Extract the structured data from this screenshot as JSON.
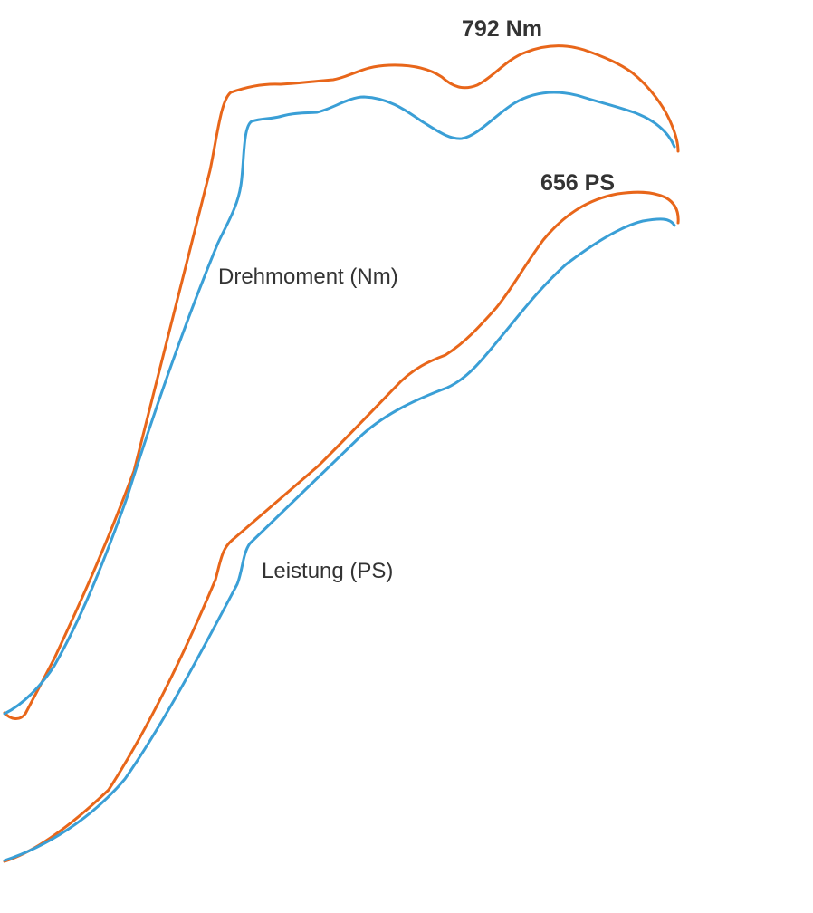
{
  "chart_data": {
    "type": "line",
    "title": "",
    "xlabel": "",
    "ylabel": "",
    "grid": false,
    "legend": "none",
    "colors": {
      "tuned": "#e8661a",
      "stock": "#3a9fd6",
      "text": "#333333"
    },
    "annotations": {
      "torque_peak": "792 Nm",
      "power_peak": "656 PS",
      "torque_label": "Drehmoment (Nm)",
      "power_label": "Leistung (PS)"
    },
    "series": [
      {
        "metric": "torque",
        "variant": "tuned",
        "color": "#e8661a"
      },
      {
        "metric": "torque",
        "variant": "stock",
        "color": "#3a9fd6"
      },
      {
        "metric": "power",
        "variant": "tuned",
        "color": "#e8661a"
      },
      {
        "metric": "power",
        "variant": "stock",
        "color": "#3a9fd6"
      }
    ]
  }
}
